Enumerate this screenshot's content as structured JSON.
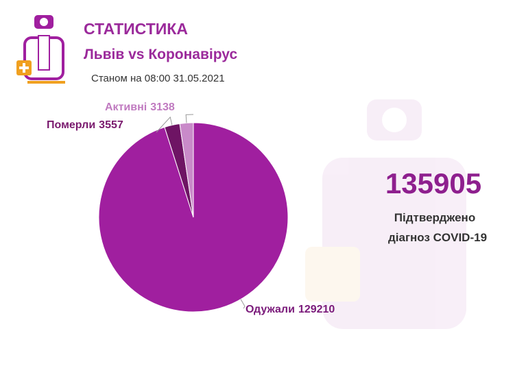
{
  "header": {
    "title": "СТАТИСТИКА",
    "subtitle": "Львів vs Коронавірус",
    "date": "Станом на 08:00 31.05.2021"
  },
  "chart_data": {
    "type": "pie",
    "categories": [
      "Одужали",
      "Померли",
      "Активні"
    ],
    "values": [
      129210,
      3557,
      3138
    ],
    "colors": [
      "#a01f9f",
      "#6e1464",
      "#c98ac9"
    ]
  },
  "summary": {
    "total": 135905,
    "caption": [
      "Підтверджено",
      "діагноз COVID-19"
    ]
  }
}
